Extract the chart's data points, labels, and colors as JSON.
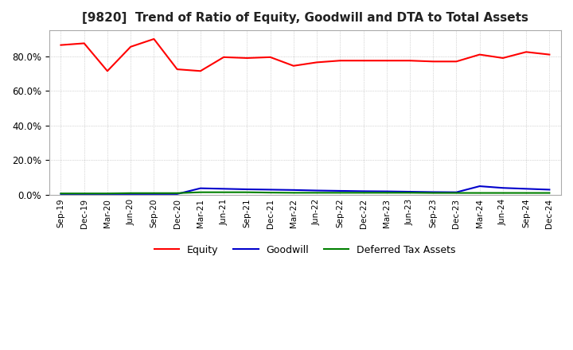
{
  "title": "[9820]  Trend of Ratio of Equity, Goodwill and DTA to Total Assets",
  "title_fontsize": 11,
  "background_color": "#ffffff",
  "grid_color": "#aaaaaa",
  "ylim": [
    0,
    95
  ],
  "yticks": [
    0,
    20,
    40,
    60,
    80
  ],
  "x_labels": [
    "Sep-19",
    "Dec-19",
    "Mar-20",
    "Jun-20",
    "Sep-20",
    "Dec-20",
    "Mar-21",
    "Jun-21",
    "Sep-21",
    "Dec-21",
    "Mar-22",
    "Jun-22",
    "Sep-22",
    "Dec-22",
    "Mar-23",
    "Jun-23",
    "Sep-23",
    "Dec-23",
    "Mar-24",
    "Jun-24",
    "Sep-24",
    "Dec-24"
  ],
  "equity": [
    86.5,
    87.5,
    71.5,
    85.5,
    90.0,
    72.5,
    71.5,
    79.5,
    79.0,
    79.5,
    74.5,
    76.5,
    77.5,
    77.5,
    77.5,
    77.5,
    77.0,
    77.0,
    81.0,
    79.0,
    82.5,
    81.0
  ],
  "goodwill": [
    0.5,
    0.5,
    0.5,
    0.5,
    0.5,
    0.5,
    3.8,
    3.5,
    3.2,
    3.0,
    2.8,
    2.5,
    2.3,
    2.1,
    2.0,
    1.8,
    1.6,
    1.5,
    5.0,
    4.0,
    3.5,
    3.0
  ],
  "dta": [
    0.8,
    0.8,
    0.8,
    1.0,
    1.0,
    1.0,
    1.5,
    1.5,
    1.5,
    1.3,
    1.2,
    1.2,
    1.2,
    1.2,
    1.2,
    1.2,
    1.1,
    1.1,
    1.1,
    1.1,
    1.1,
    1.1
  ],
  "equity_color": "#ff0000",
  "goodwill_color": "#0000cc",
  "dta_color": "#008000",
  "legend_labels": [
    "Equity",
    "Goodwill",
    "Deferred Tax Assets"
  ]
}
